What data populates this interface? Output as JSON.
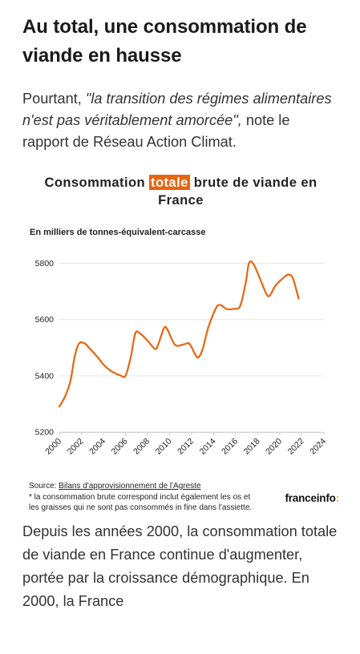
{
  "article": {
    "headline": "Au total, une consommation de viande en hausse",
    "lead_prefix": "Pourtant, ",
    "lead_quote": "\"la transition des régimes alimentaires n'est pas véritablement amorcée\",",
    "lead_suffix": " note le rapport de Réseau Action Climat.",
    "body_text": "Depuis les années 2000, la consommation totale de viande en France continue d'augmenter, portée par la croissance démographique. En 2000, la France"
  },
  "chart_data": {
    "type": "line",
    "title_before": "Consommation ",
    "title_highlight": "totale",
    "title_after": " brute de viande en France",
    "subtitle": "En milliers de tonnes-équivalent-carcasse",
    "xlabel": "",
    "ylabel": "",
    "xlim": [
      2000,
      2024
    ],
    "ylim": [
      5200,
      5870
    ],
    "yticks": [
      5200,
      5400,
      5600,
      5800
    ],
    "xticks": [
      2000,
      2002,
      2004,
      2006,
      2008,
      2010,
      2012,
      2014,
      2016,
      2018,
      2020,
      2022,
      2024
    ],
    "grid": true,
    "series": [
      {
        "color": "#e8640e",
        "points": [
          [
            2000.0,
            5290
          ],
          [
            2000.5,
            5325
          ],
          [
            2001.0,
            5380
          ],
          [
            2001.4,
            5470
          ],
          [
            2001.8,
            5515
          ],
          [
            2002.3,
            5515
          ],
          [
            2002.8,
            5495
          ],
          [
            2003.5,
            5465
          ],
          [
            2004.0,
            5440
          ],
          [
            2004.5,
            5422
          ],
          [
            2005.0,
            5410
          ],
          [
            2005.5,
            5402
          ],
          [
            2006.0,
            5400
          ],
          [
            2006.5,
            5470
          ],
          [
            2006.9,
            5552
          ],
          [
            2007.4,
            5548
          ],
          [
            2008.0,
            5525
          ],
          [
            2008.7,
            5495
          ],
          [
            2009.0,
            5515
          ],
          [
            2009.5,
            5570
          ],
          [
            2009.8,
            5565
          ],
          [
            2010.5,
            5510
          ],
          [
            2011.3,
            5512
          ],
          [
            2011.8,
            5514
          ],
          [
            2012.3,
            5478
          ],
          [
            2012.6,
            5465
          ],
          [
            2013.0,
            5495
          ],
          [
            2013.5,
            5570
          ],
          [
            2014.2,
            5640
          ],
          [
            2014.6,
            5652
          ],
          [
            2015.2,
            5637
          ],
          [
            2015.8,
            5638
          ],
          [
            2016.4,
            5648
          ],
          [
            2016.9,
            5730
          ],
          [
            2017.2,
            5800
          ],
          [
            2017.6,
            5798
          ],
          [
            2018.2,
            5745
          ],
          [
            2018.8,
            5690
          ],
          [
            2019.1,
            5686
          ],
          [
            2019.6,
            5720
          ],
          [
            2020.3,
            5748
          ],
          [
            2020.8,
            5760
          ],
          [
            2021.2,
            5745
          ],
          [
            2021.7,
            5675
          ]
        ]
      }
    ],
    "source_prefix": "Source: ",
    "source_link": "Bilans d'approvisionnement de l'Agreste",
    "note": "* la consommation brute correspond inclut également les os et les graisses qui ne sont pas consommés in fine dans l'assiette.",
    "brand": "franceinfo",
    "brand_mark": ":"
  }
}
